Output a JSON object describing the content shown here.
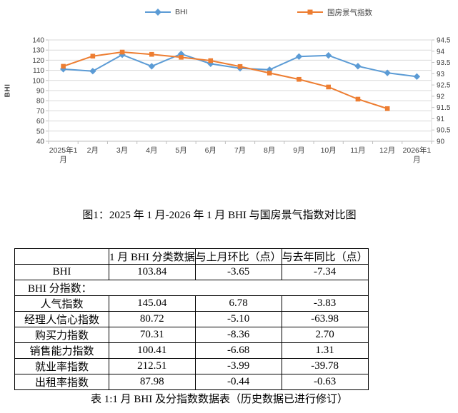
{
  "captions": {
    "figure": "图1：2025 年 1 月-2026 年 1 月 BHI 与国房景气指数对比图",
    "table": "表 1:1 月 BHI 及分指数数据表（历史数据已进行修订）"
  },
  "chart_data": {
    "type": "line",
    "legend_position": "top",
    "grid": true,
    "categories": [
      "2025年1月",
      "2月",
      "3月",
      "4月",
      "5月",
      "6月",
      "7月",
      "8月",
      "9月",
      "10月",
      "11月",
      "12月",
      "2026年1月"
    ],
    "series": [
      {
        "name": "BHI",
        "axis": "left",
        "color": "#5B9BD5",
        "marker": "diamond",
        "values": [
          111.18,
          109.2,
          125.4,
          114.0,
          126.2,
          116.5,
          112.0,
          110.6,
          123.6,
          124.7,
          114.1,
          107.49,
          103.84
        ]
      },
      {
        "name": "国房景气指数",
        "axis": "right",
        "color": "#ED7D31",
        "marker": "square",
        "values": [
          93.33,
          93.78,
          93.96,
          93.86,
          93.73,
          93.58,
          93.32,
          93.03,
          92.75,
          92.41,
          91.87,
          91.45,
          null
        ]
      }
    ],
    "left_axis": {
      "title": "BHI",
      "min": 40,
      "max": 140,
      "ticks": [
        "140",
        "130",
        "120",
        "110",
        "100",
        "90",
        "80",
        "70",
        "60",
        "50",
        "40"
      ]
    },
    "right_axis": {
      "min": 90,
      "max": 94.5,
      "ticks": [
        "94.5",
        "94",
        "93.5",
        "93",
        "92.5",
        "92",
        "91.5",
        "91",
        "90.5",
        "90"
      ]
    },
    "colors": {
      "grid": "#D9D9D9",
      "axis": "#BFBFBF",
      "tick_text": "#404040"
    }
  },
  "table": {
    "header": [
      "",
      "1 月 BHI 分类数据",
      "与上月环比（点）",
      "与去年同比（点）"
    ],
    "bhi_row": [
      "BHI",
      "103.84",
      "-3.65",
      "-7.34"
    ],
    "section_row": "BHI 分指数：",
    "sub_rows": [
      [
        "人气指数",
        "145.04",
        "6.78",
        "-3.83"
      ],
      [
        "经理人信心指数",
        "80.72",
        "-5.10",
        "-63.98"
      ],
      [
        "购买力指数",
        "70.31",
        "-8.36",
        "2.70"
      ],
      [
        "销售能力指数",
        "100.41",
        "-6.68",
        "1.31"
      ],
      [
        "就业率指数",
        "212.51",
        "-3.99",
        "-39.78"
      ],
      [
        "出租率指数",
        "87.98",
        "-0.44",
        "-0.63"
      ]
    ]
  }
}
